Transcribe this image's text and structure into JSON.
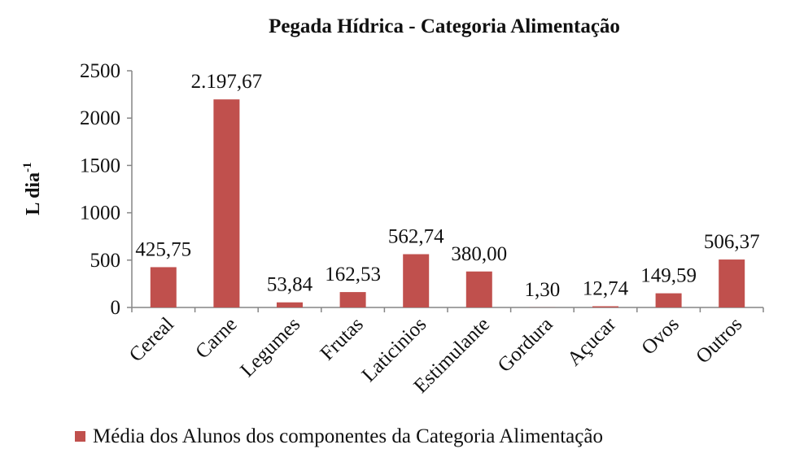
{
  "chart_data": {
    "type": "bar",
    "title": "Pegada Hídrica  - Categoria Alimentação",
    "ylabel": "L dia",
    "ylabel_superscript": "-1",
    "xlabel": "",
    "ylim": [
      0,
      2500
    ],
    "yticks": [
      0,
      500,
      1000,
      1500,
      2000,
      2500
    ],
    "categories": [
      "Cereal",
      "Carne",
      "Legumes",
      "Frutas",
      "Laticinios",
      "Estimulante",
      "Gordura",
      "Açucar",
      "Ovos",
      "Outros"
    ],
    "series": [
      {
        "name": "Média dos Alunos dos componentes da Categoria Alimentação",
        "values": [
          425.75,
          2197.67,
          53.84,
          162.53,
          562.74,
          380.0,
          1.3,
          12.74,
          149.59,
          506.37
        ],
        "data_labels": [
          "425,75",
          "2.197,67",
          "53,84",
          "162,53",
          "562,74",
          "380,00",
          "1,30",
          "12,74",
          "149,59",
          "506,37"
        ],
        "color": "#c0504d"
      }
    ],
    "grid": false,
    "legend_position": "bottom"
  }
}
